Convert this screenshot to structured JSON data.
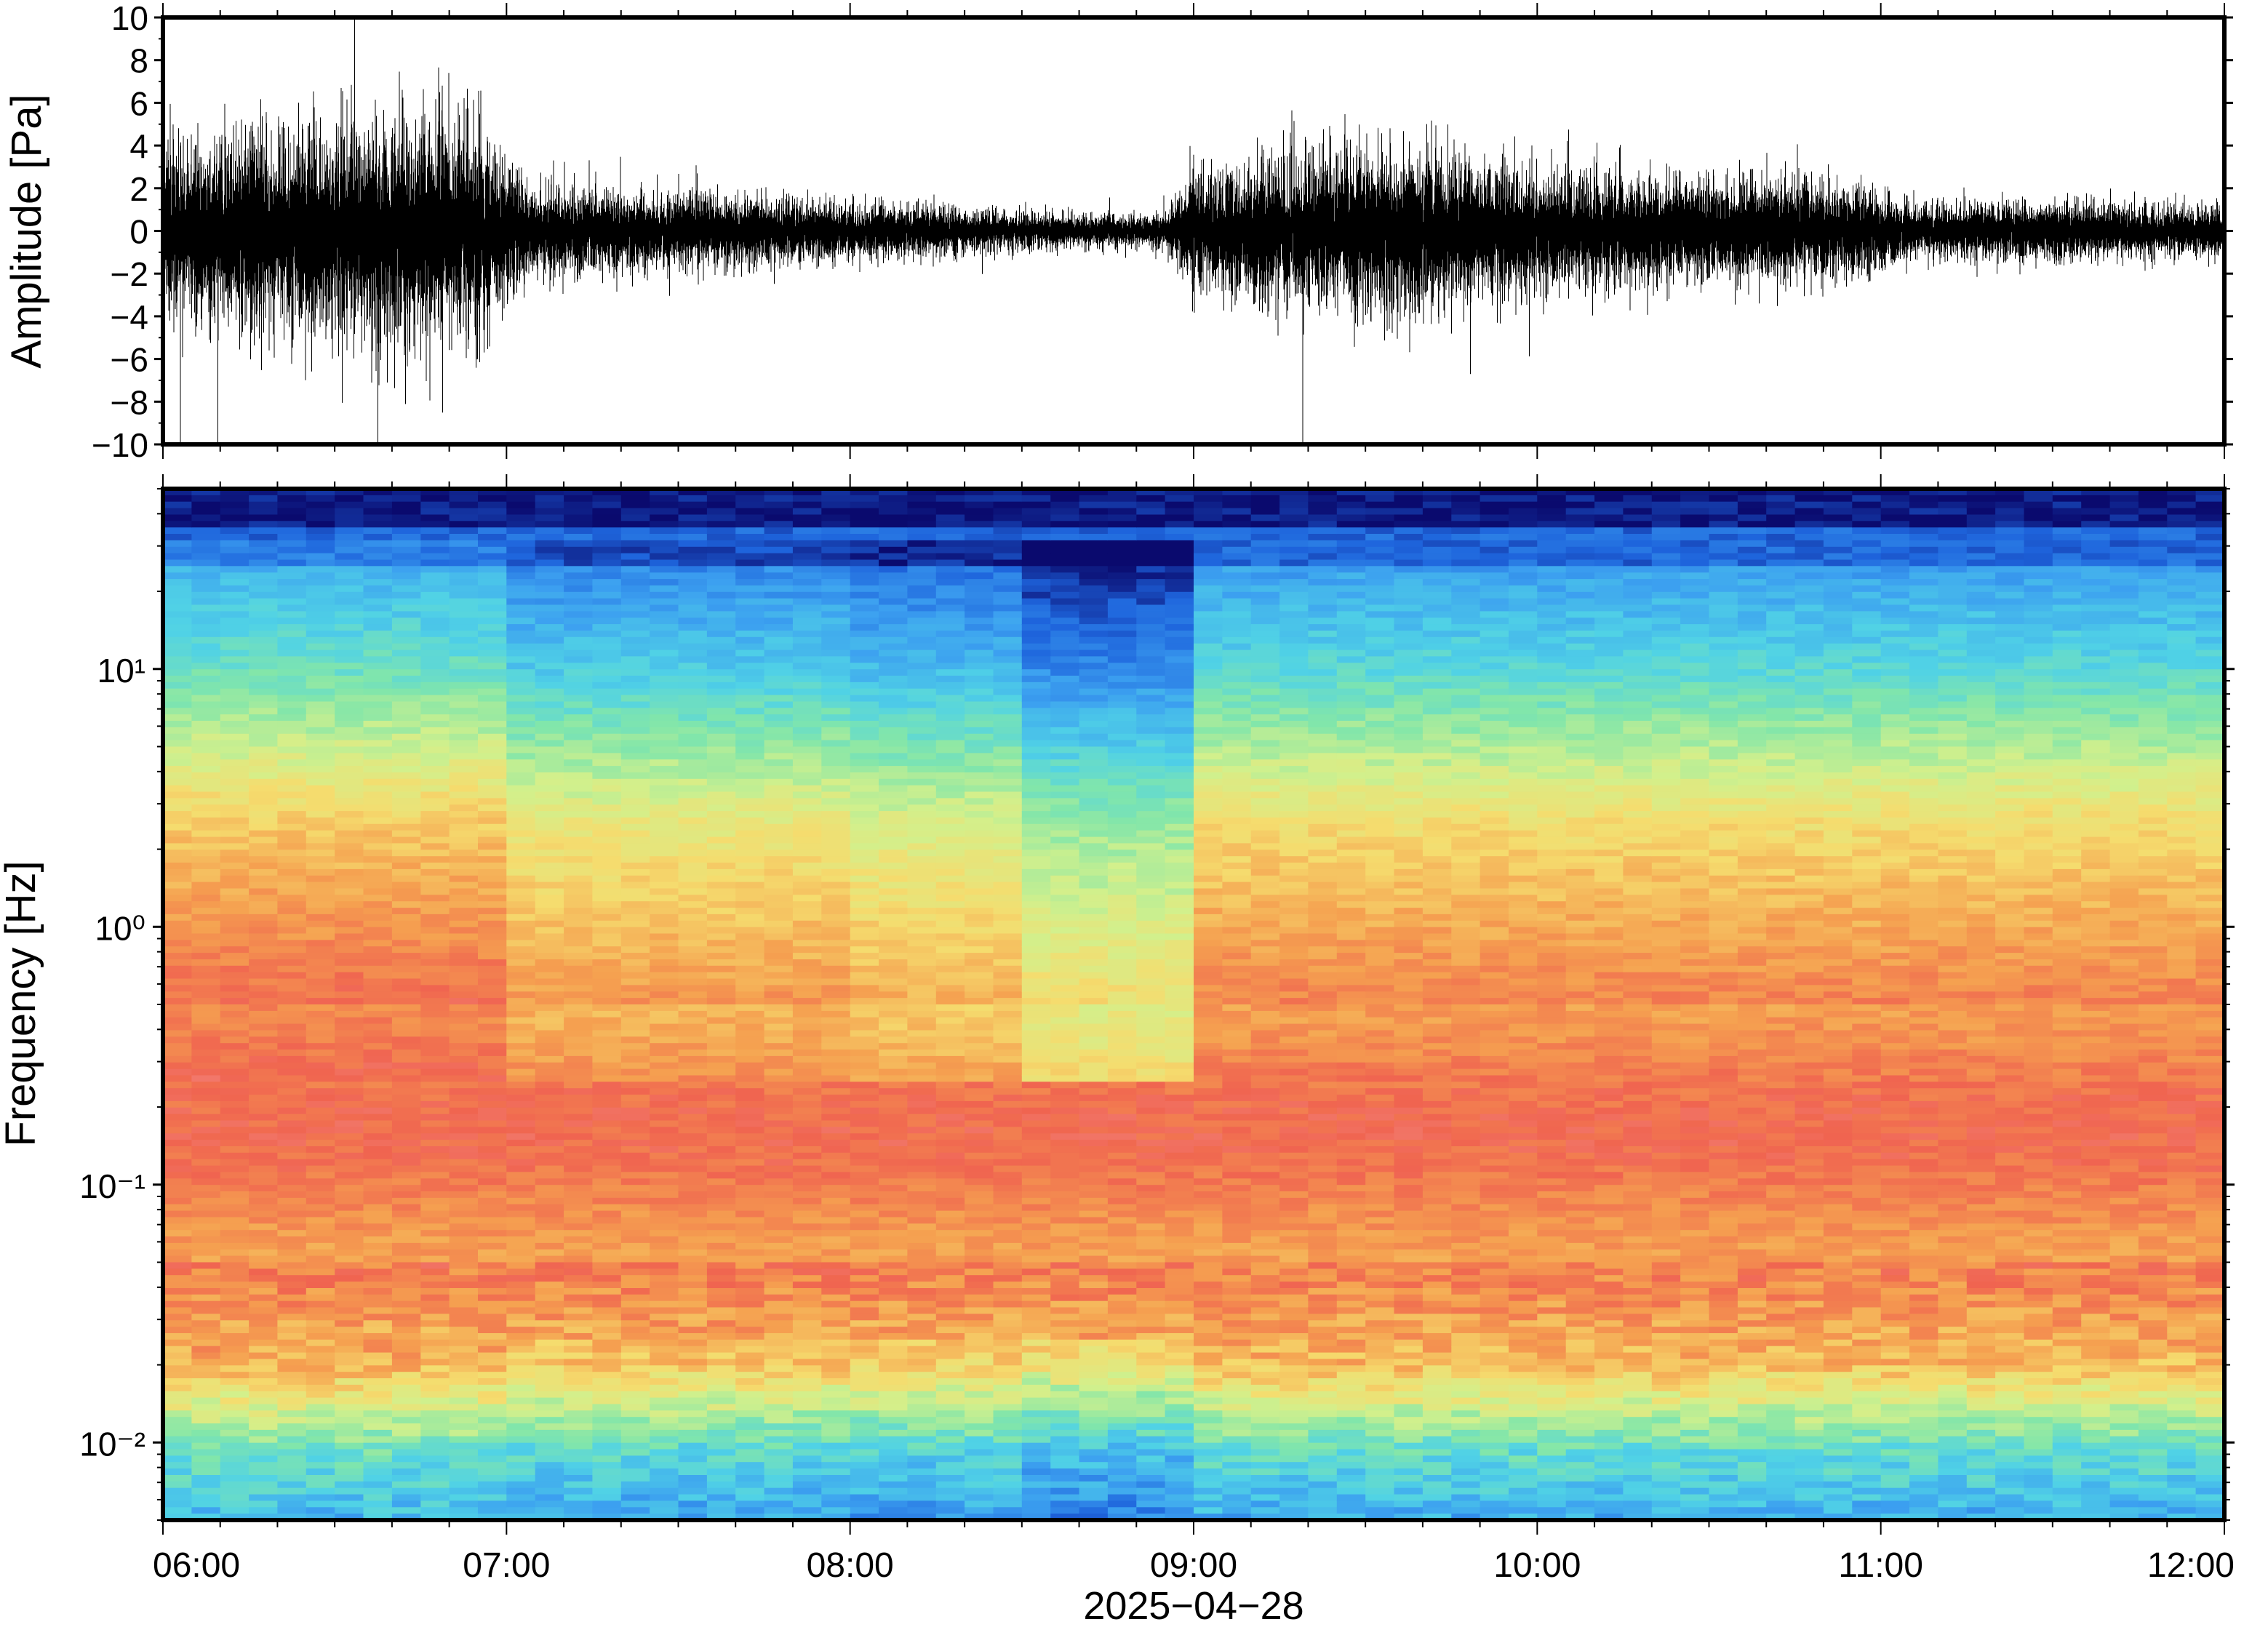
{
  "chart_data": [
    {
      "type": "line",
      "ylabel": "Amplitude [Pa]",
      "ylim": [
        -10,
        10
      ],
      "yticks": [
        "10",
        "8",
        "6",
        "4",
        "2",
        "0",
        "−2",
        "−4",
        "−6",
        "−8",
        "−10"
      ],
      "x_range": [
        "06:00",
        "12:00"
      ],
      "series": [
        {
          "values_note": "",
          "envelope": {
            "time": [
              "06:00",
              "06:15",
              "06:30",
              "06:45",
              "06:55",
              "07:05",
              "07:20",
              "07:40",
              "08:00",
              "08:20",
              "08:40",
              "08:55",
              "09:00",
              "09:15",
              "09:30",
              "09:45",
              "10:00",
              "10:15",
              "10:30",
              "10:45",
              "10:55",
              "11:05",
              "11:20",
              "11:40",
              "12:00"
            ],
            "half_range_pa": [
              4.5,
              5.0,
              5.8,
              6.2,
              5.5,
              2.5,
              2.2,
              1.8,
              1.5,
              1.2,
              0.9,
              0.9,
              3.2,
              4.0,
              4.5,
              4.0,
              3.3,
              3.0,
              2.7,
              2.7,
              2.5,
              1.5,
              1.6,
              1.5,
              1.3
            ]
          }
        }
      ]
    },
    {
      "type": "heatmap",
      "ylabel": "Frequency [Hz]",
      "yscale": "log",
      "ylim": [
        0.005,
        50
      ],
      "ytick_labels": [
        "10⁻²",
        "10⁻¹",
        "10⁰",
        "10¹"
      ],
      "yticks_value": [
        0.01,
        0.1,
        1,
        10
      ],
      "xlabel": "2025−04−28",
      "x_ticks": [
        "06:00",
        "07:00",
        "08:00",
        "09:00",
        "10:00",
        "11:00",
        "12:00"
      ],
      "colormap": [
        "#0a0a6e",
        "#1e64dc",
        "#3ca0f0",
        "#50d2e6",
        "#82e6aa",
        "#d2f08c",
        "#f5dc6e",
        "#f5a050",
        "#f06450",
        "#f5a0a0"
      ]
    }
  ]
}
